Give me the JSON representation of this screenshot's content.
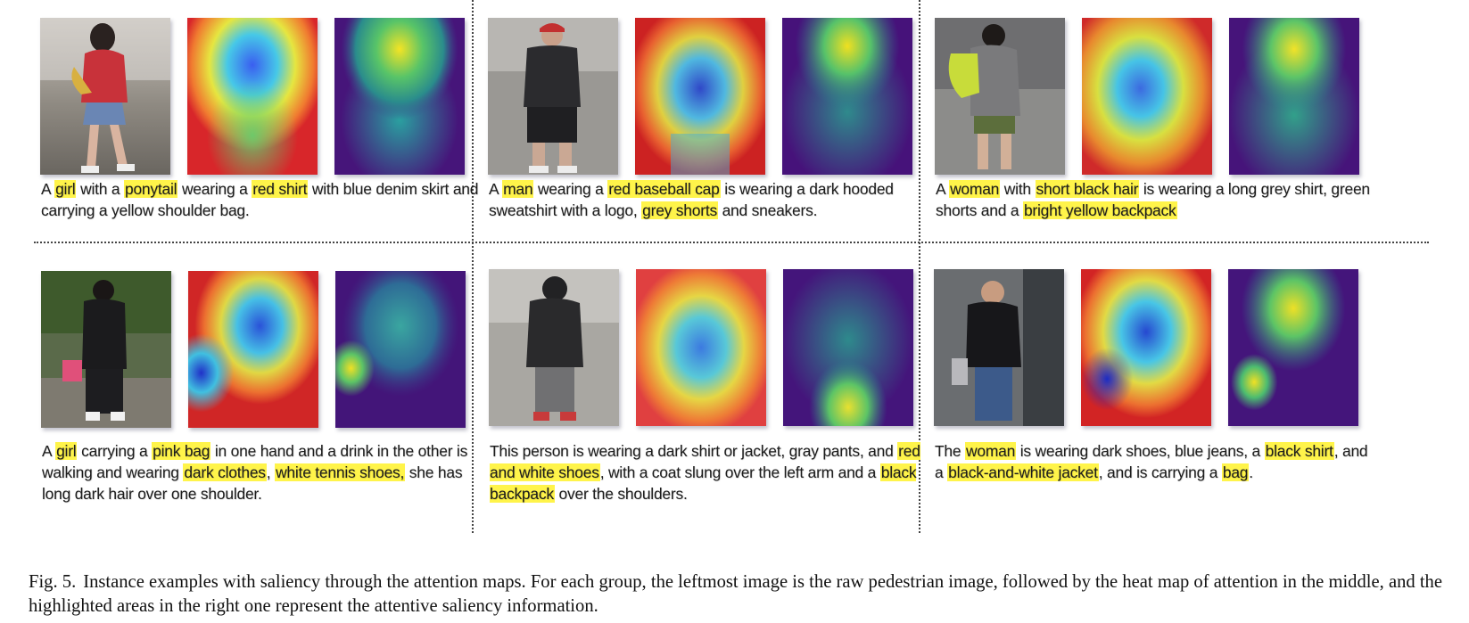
{
  "figure": {
    "label": "Fig. 5.",
    "caption": "Instance examples with saliency through the attention maps. For each group, the leftmost image is the raw pedestrian image, followed by the heat map of attention in the middle, and the highlighted areas in the right one represent the attentive saliency information."
  },
  "colors": {
    "highlight": "#fff44a",
    "text": "#1c1c1c"
  },
  "examples": [
    {
      "images": [
        "raw pedestrian image",
        "attention heat map",
        "attentive saliency map"
      ],
      "caption_parts": [
        {
          "t": "A ",
          "h": false
        },
        {
          "t": "girl",
          "h": true
        },
        {
          "t": " with a ",
          "h": false
        },
        {
          "t": "ponytail",
          "h": true
        },
        {
          "t": " wearing a ",
          "h": false
        },
        {
          "t": "red shirt",
          "h": true
        },
        {
          "t": " with blue denim skirt and carrying a yellow shoulder bag.",
          "h": false
        }
      ]
    },
    {
      "images": [
        "raw pedestrian image",
        "attention heat map",
        "attentive saliency map"
      ],
      "caption_parts": [
        {
          "t": "A ",
          "h": false
        },
        {
          "t": "man",
          "h": true
        },
        {
          "t": " wearing a ",
          "h": false
        },
        {
          "t": "red baseball cap",
          "h": true
        },
        {
          "t": " is wearing a dark hooded sweatshirt with a logo, ",
          "h": false
        },
        {
          "t": "grey shorts",
          "h": true
        },
        {
          "t": " and sneakers.",
          "h": false
        }
      ]
    },
    {
      "images": [
        "raw pedestrian image",
        "attention heat map",
        "attentive saliency map"
      ],
      "caption_parts": [
        {
          "t": "A ",
          "h": false
        },
        {
          "t": "woman",
          "h": true
        },
        {
          "t": " with ",
          "h": false
        },
        {
          "t": "short black hair",
          "h": true
        },
        {
          "t": " is wearing a long grey shirt, green shorts and a ",
          "h": false
        },
        {
          "t": "bright yellow backpack",
          "h": true
        }
      ]
    },
    {
      "images": [
        "raw pedestrian image",
        "attention heat map",
        "attentive saliency map"
      ],
      "caption_parts": [
        {
          "t": "A ",
          "h": false
        },
        {
          "t": "girl",
          "h": true
        },
        {
          "t": " carrying a ",
          "h": false
        },
        {
          "t": "pink bag",
          "h": true
        },
        {
          "t": " in one hand and a drink in the other is walking and wearing ",
          "h": false
        },
        {
          "t": "dark clothes",
          "h": true
        },
        {
          "t": ", ",
          "h": false
        },
        {
          "t": "white tennis shoes,",
          "h": true
        },
        {
          "t": " she has long dark hair over one shoulder.",
          "h": false
        }
      ]
    },
    {
      "images": [
        "raw pedestrian image",
        "attention heat map",
        "attentive saliency map"
      ],
      "caption_parts": [
        {
          "t": "This person is wearing a dark shirt or jacket, gray pants, and ",
          "h": false
        },
        {
          "t": "red and white shoes",
          "h": true
        },
        {
          "t": ", with a coat slung over the left arm and a ",
          "h": false
        },
        {
          "t": "black backpack",
          "h": true
        },
        {
          "t": " over the shoulders.",
          "h": false
        }
      ]
    },
    {
      "images": [
        "raw pedestrian image",
        "attention heat map",
        "attentive saliency map"
      ],
      "caption_parts": [
        {
          "t": "The ",
          "h": false
        },
        {
          "t": "woman",
          "h": true
        },
        {
          "t": " is wearing dark shoes, blue jeans, a ",
          "h": false
        },
        {
          "t": "black shirt",
          "h": true
        },
        {
          "t": ", and a ",
          "h": false
        },
        {
          "t": "black-and-white jacket",
          "h": true
        },
        {
          "t": ", and is carrying a ",
          "h": false
        },
        {
          "t": "bag",
          "h": true
        },
        {
          "t": ".",
          "h": false
        }
      ]
    }
  ]
}
